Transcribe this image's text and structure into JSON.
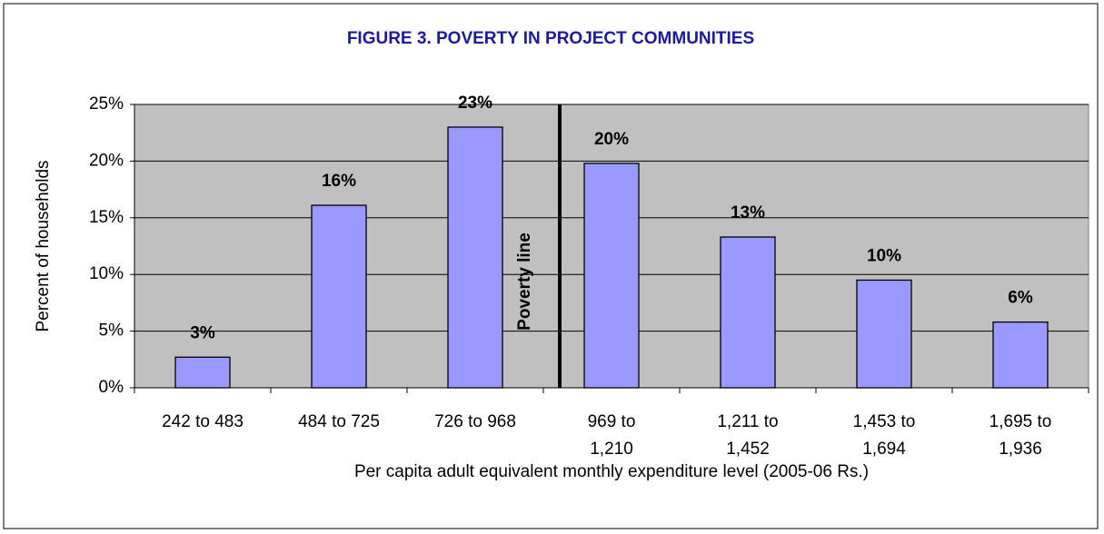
{
  "chart_data": {
    "type": "bar",
    "title": "FIGURE 3. POVERTY IN PROJECT COMMUNITIES",
    "y_label": "Percent of households",
    "x_label": "Per capita adult equivalent monthly expenditure level (2005-06 Rs.)",
    "annotation": "Poverty line",
    "categories": [
      "242 to 483",
      "484 to 725",
      "726 to 968",
      "969 to 1,210",
      "1,211 to 1,452",
      "1,453 to 1,694",
      "1,695 to 1,936"
    ],
    "values": [
      2.7,
      16.1,
      23.0,
      19.8,
      13.3,
      9.5,
      5.8
    ],
    "value_labels": [
      "3%",
      "16%",
      "23%",
      "20%",
      "13%",
      "10%",
      "6%"
    ],
    "color": "#9999ff",
    "ylim": [
      0,
      25
    ],
    "yticks": [
      {
        "value": 0,
        "label": "0%"
      },
      {
        "value": 5,
        "label": "5%"
      },
      {
        "value": 10,
        "label": "10%"
      },
      {
        "value": 15,
        "label": "15%"
      },
      {
        "value": 20,
        "label": "20%"
      },
      {
        "value": 25,
        "label": "25%"
      }
    ],
    "grid": true
  }
}
